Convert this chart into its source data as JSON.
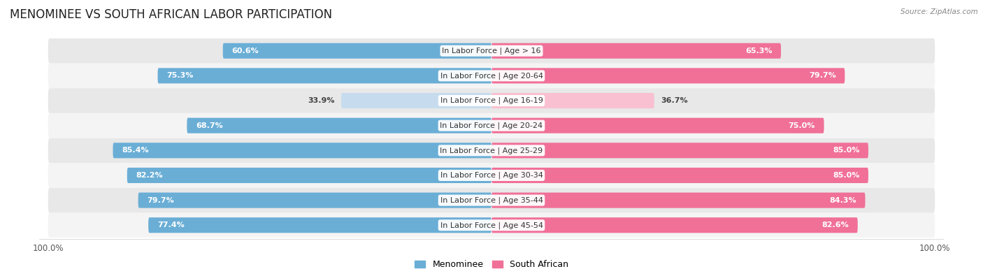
{
  "title": "MENOMINEE VS SOUTH AFRICAN LABOR PARTICIPATION",
  "source": "Source: ZipAtlas.com",
  "categories": [
    "In Labor Force | Age > 16",
    "In Labor Force | Age 20-64",
    "In Labor Force | Age 16-19",
    "In Labor Force | Age 20-24",
    "In Labor Force | Age 25-29",
    "In Labor Force | Age 30-34",
    "In Labor Force | Age 35-44",
    "In Labor Force | Age 45-54"
  ],
  "menominee": [
    60.6,
    75.3,
    33.9,
    68.7,
    85.4,
    82.2,
    79.7,
    77.4
  ],
  "south_african": [
    65.3,
    79.7,
    36.7,
    75.0,
    85.0,
    85.0,
    84.3,
    82.6
  ],
  "menominee_color": "#6aaed6",
  "menominee_color_light": "#c6dcee",
  "south_african_color": "#f07098",
  "south_african_color_light": "#f8c0d0",
  "background_color": "#ffffff",
  "row_bg_even": "#f4f4f4",
  "row_bg_odd": "#e8e8e8",
  "max_value": 100.0,
  "legend_menominee": "Menominee",
  "legend_south_african": "South African",
  "title_fontsize": 12,
  "label_fontsize": 8,
  "value_fontsize": 8,
  "low_threshold": 50
}
